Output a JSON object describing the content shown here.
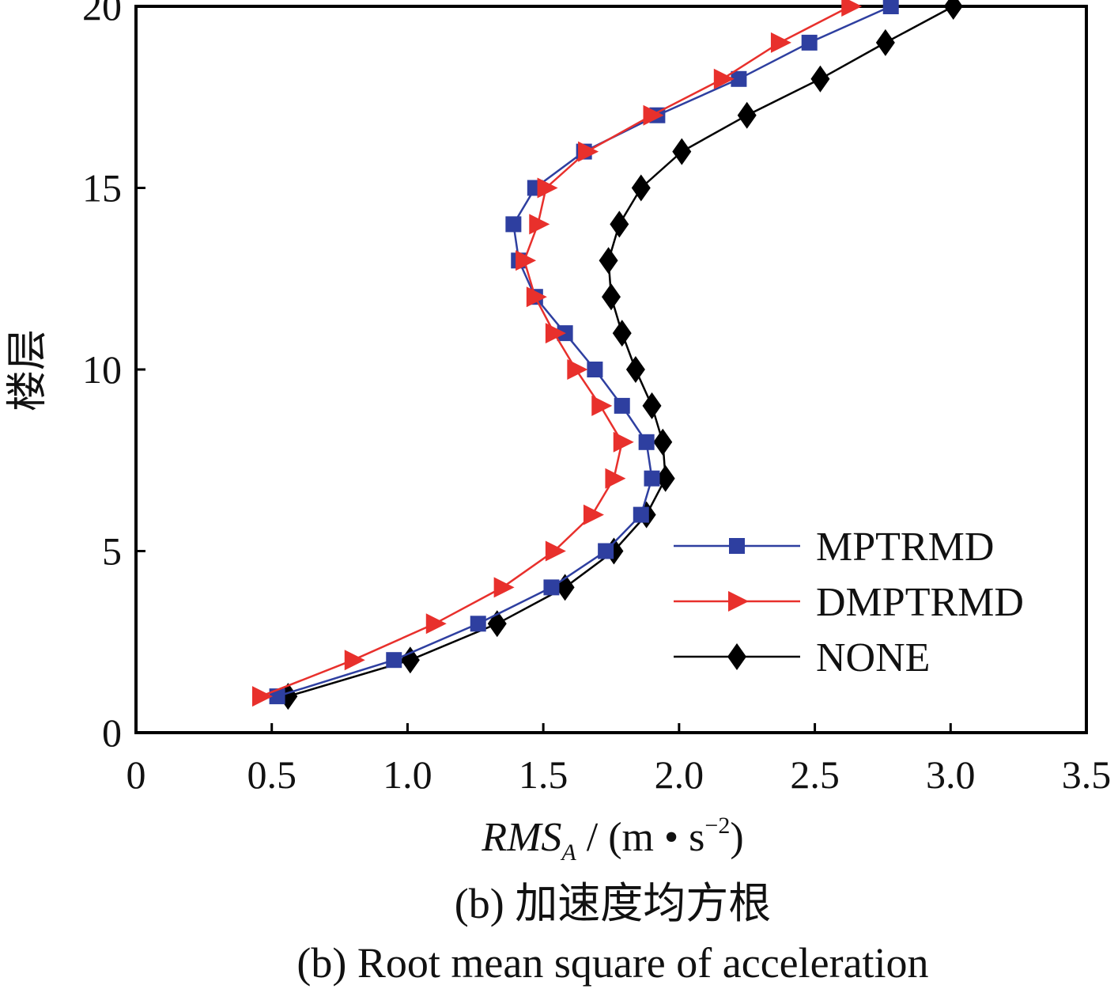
{
  "chart_data": {
    "type": "line",
    "xlabel": {
      "main": "RMS",
      "subscript": "A",
      "unit_prefix": " / (m • s",
      "unit_exponent": "−2",
      "unit_suffix": ")"
    },
    "ylabel": "楼层",
    "xlim": [
      0,
      3.5
    ],
    "ylim": [
      0,
      20
    ],
    "x_ticks": [
      "0",
      "0.5",
      "1.0",
      "1.5",
      "2.0",
      "2.5",
      "3.0",
      "3.5"
    ],
    "y_ticks": [
      "0",
      "5",
      "10",
      "15",
      "20"
    ],
    "legend_position": "lower-right",
    "grid": false,
    "captions": [
      "(b) 加速度均方根",
      "(b) Root mean square of acceleration"
    ],
    "series": [
      {
        "name": "MPTRMD",
        "color": "#2e3fa0",
        "marker": "square",
        "points": [
          {
            "x": 0.52,
            "y": 1
          },
          {
            "x": 0.95,
            "y": 2
          },
          {
            "x": 1.26,
            "y": 3
          },
          {
            "x": 1.53,
            "y": 4
          },
          {
            "x": 1.73,
            "y": 5
          },
          {
            "x": 1.86,
            "y": 6
          },
          {
            "x": 1.9,
            "y": 7
          },
          {
            "x": 1.88,
            "y": 8
          },
          {
            "x": 1.79,
            "y": 9
          },
          {
            "x": 1.69,
            "y": 10
          },
          {
            "x": 1.58,
            "y": 11
          },
          {
            "x": 1.47,
            "y": 12
          },
          {
            "x": 1.41,
            "y": 13
          },
          {
            "x": 1.39,
            "y": 14
          },
          {
            "x": 1.47,
            "y": 15
          },
          {
            "x": 1.65,
            "y": 16
          },
          {
            "x": 1.92,
            "y": 17
          },
          {
            "x": 2.22,
            "y": 18
          },
          {
            "x": 2.48,
            "y": 19
          },
          {
            "x": 2.78,
            "y": 20
          }
        ]
      },
      {
        "name": "DMPTRMD",
        "color": "#e8302c",
        "marker": "triangle-right",
        "points": [
          {
            "x": 0.46,
            "y": 1
          },
          {
            "x": 0.8,
            "y": 2
          },
          {
            "x": 1.1,
            "y": 3
          },
          {
            "x": 1.35,
            "y": 4
          },
          {
            "x": 1.54,
            "y": 5
          },
          {
            "x": 1.68,
            "y": 6
          },
          {
            "x": 1.76,
            "y": 7
          },
          {
            "x": 1.79,
            "y": 8
          },
          {
            "x": 1.71,
            "y": 9
          },
          {
            "x": 1.62,
            "y": 10
          },
          {
            "x": 1.54,
            "y": 11
          },
          {
            "x": 1.47,
            "y": 12
          },
          {
            "x": 1.43,
            "y": 13
          },
          {
            "x": 1.48,
            "y": 14
          },
          {
            "x": 1.51,
            "y": 15
          },
          {
            "x": 1.66,
            "y": 16
          },
          {
            "x": 1.9,
            "y": 17
          },
          {
            "x": 2.16,
            "y": 18
          },
          {
            "x": 2.37,
            "y": 19
          },
          {
            "x": 2.63,
            "y": 20
          }
        ]
      },
      {
        "name": "NONE",
        "color": "#000000",
        "marker": "diamond",
        "points": [
          {
            "x": 0.56,
            "y": 1
          },
          {
            "x": 1.01,
            "y": 2
          },
          {
            "x": 1.33,
            "y": 3
          },
          {
            "x": 1.58,
            "y": 4
          },
          {
            "x": 1.76,
            "y": 5
          },
          {
            "x": 1.88,
            "y": 6
          },
          {
            "x": 1.95,
            "y": 7
          },
          {
            "x": 1.94,
            "y": 8
          },
          {
            "x": 1.9,
            "y": 9
          },
          {
            "x": 1.84,
            "y": 10
          },
          {
            "x": 1.79,
            "y": 11
          },
          {
            "x": 1.75,
            "y": 12
          },
          {
            "x": 1.74,
            "y": 13
          },
          {
            "x": 1.78,
            "y": 14
          },
          {
            "x": 1.86,
            "y": 15
          },
          {
            "x": 2.01,
            "y": 16
          },
          {
            "x": 2.25,
            "y": 17
          },
          {
            "x": 2.52,
            "y": 18
          },
          {
            "x": 2.76,
            "y": 19
          },
          {
            "x": 3.01,
            "y": 20
          }
        ]
      }
    ]
  }
}
